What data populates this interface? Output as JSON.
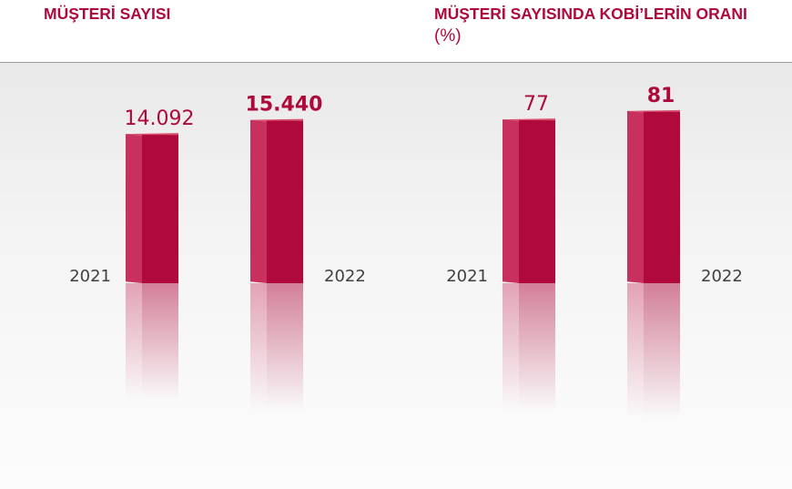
{
  "colors": {
    "bar_front": "#b0093b",
    "bar_side": "#c8315d",
    "bar_top": "#d9506f",
    "title": "#ad0a3b",
    "year_label": "#404040"
  },
  "chart_data": [
    {
      "type": "bar",
      "title": "MÜŞTERİ SAYISI",
      "subtitle": "",
      "categories": [
        "2021",
        "2022"
      ],
      "values": [
        14092,
        15440
      ],
      "value_labels": [
        "14.092",
        "15.440"
      ],
      "highlight_index": 1,
      "ylim": [
        0,
        17500
      ],
      "grid": false,
      "legend": "none"
    },
    {
      "type": "bar",
      "title": "MÜŞTERİ SAYISINDA KOBİ’LERİN ORANI",
      "subtitle": "(%)",
      "categories": [
        "2021",
        "2022"
      ],
      "values": [
        77,
        81
      ],
      "value_labels": [
        "77",
        "81"
      ],
      "highlight_index": 1,
      "ylim": [
        0,
        87
      ],
      "grid": false,
      "legend": "none"
    }
  ]
}
